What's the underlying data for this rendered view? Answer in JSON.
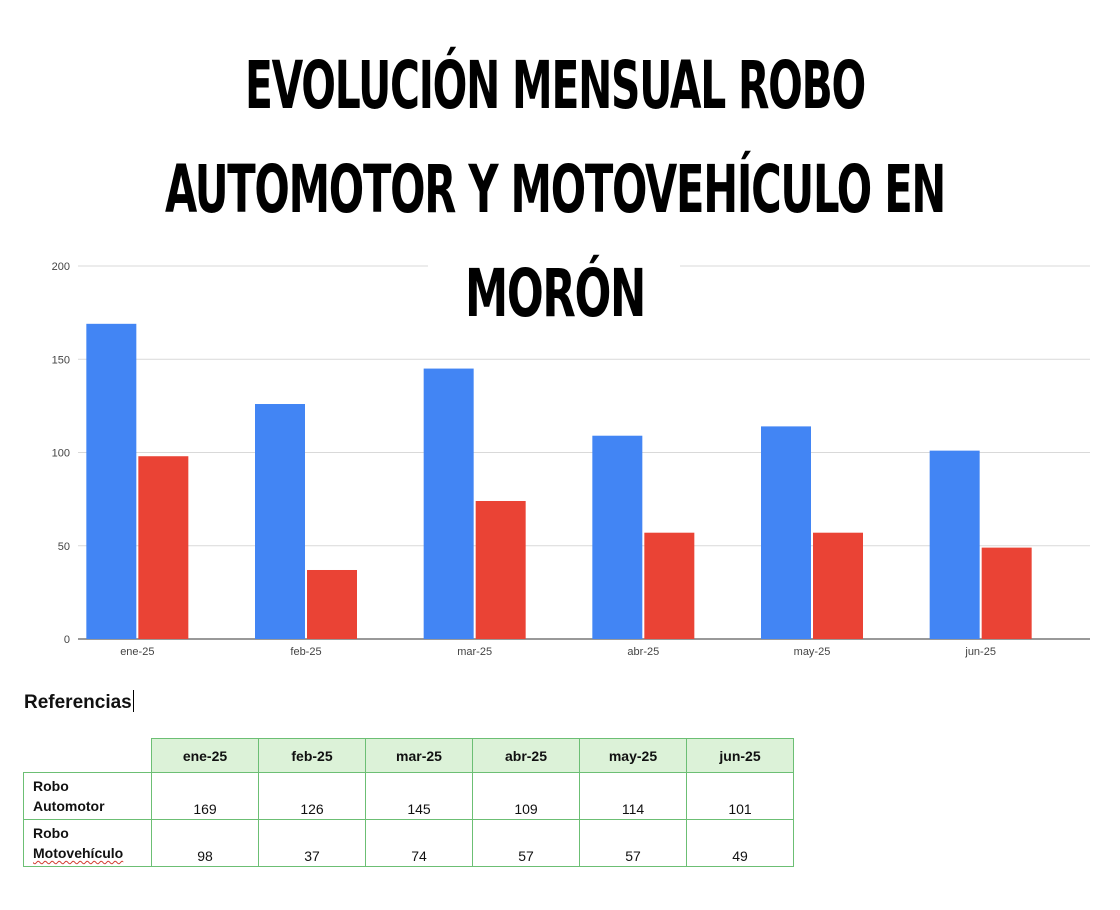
{
  "chart_data": {
    "type": "bar",
    "title_lines": [
      "EVOLUCIÓN MENSUAL ROBO",
      "AUTOMOTOR Y MOTOVEHÍCULO EN",
      "MORÓN"
    ],
    "categories": [
      "ene-25",
      "feb-25",
      "mar-25",
      "abr-25",
      "may-25",
      "jun-25"
    ],
    "series": [
      {
        "name": "Robo Automotor",
        "values": [
          169,
          126,
          145,
          109,
          114,
          101
        ],
        "color": "#4285f4"
      },
      {
        "name": "Robo Motovehículo",
        "values": [
          98,
          37,
          74,
          57,
          57,
          49
        ],
        "color": "#ea4335"
      }
    ],
    "yticks": [
      "0",
      "50",
      "100",
      "150",
      "200"
    ],
    "ylim": [
      0,
      200
    ],
    "grid": true,
    "legend": "none"
  },
  "references": {
    "title": "Referencias",
    "row_labels": [
      [
        "Robo",
        "Automotor"
      ],
      [
        "Robo",
        "Motovehículo"
      ]
    ]
  }
}
